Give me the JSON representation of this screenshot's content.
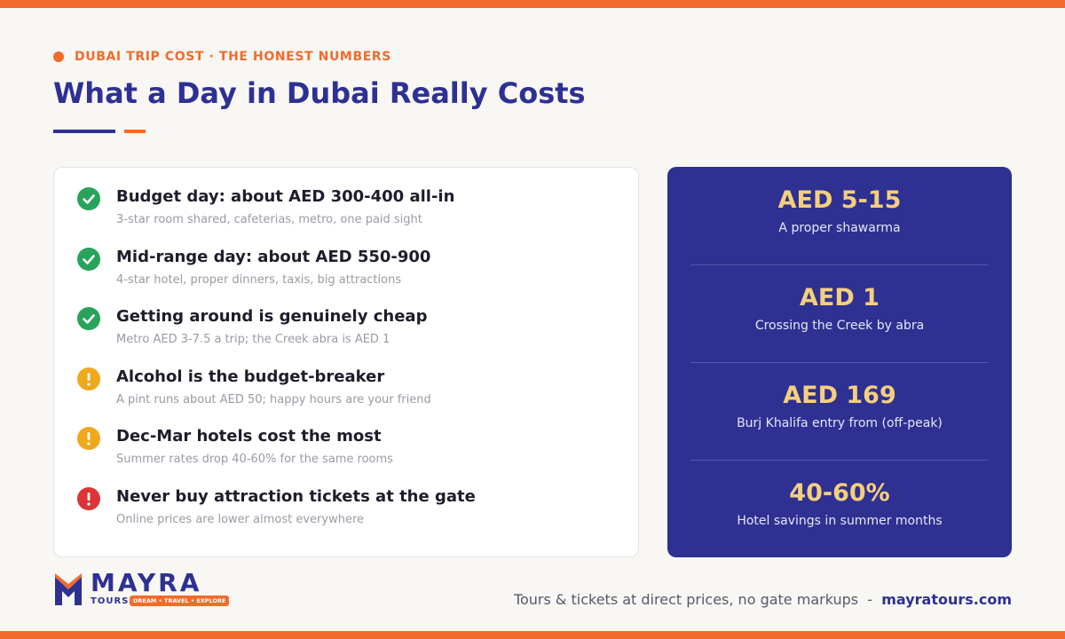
{
  "header": {
    "kicker": "DUBAI TRIP COST · THE HONEST NUMBERS",
    "title": "What a Day in Dubai Really Costs"
  },
  "tips": [
    {
      "status": "ok",
      "title": "Budget day: about AED 300-400 all-in",
      "detail": "3-star room shared, cafeterias, metro, one paid sight"
    },
    {
      "status": "ok",
      "title": "Mid-range day: about AED 550-900",
      "detail": "4-star hotel, proper dinners, taxis, big attractions"
    },
    {
      "status": "ok",
      "title": "Getting around is genuinely cheap",
      "detail": "Metro AED 3-7.5 a trip; the Creek abra is AED 1"
    },
    {
      "status": "warn",
      "title": "Alcohol is the budget-breaker",
      "detail": "A pint runs about AED 50; happy hours are your friend"
    },
    {
      "status": "warn",
      "title": "Dec-Mar hotels cost the most",
      "detail": "Summer rates drop 40-60% for the same rooms"
    },
    {
      "status": "alert",
      "title": "Never buy attraction tickets at the gate",
      "detail": "Online prices are lower almost everywhere"
    }
  ],
  "stats": [
    {
      "value": "AED 5-15",
      "label": "A proper shawarma"
    },
    {
      "value": "AED 1",
      "label": "Crossing the Creek by abra"
    },
    {
      "value": "AED 169",
      "label": "Burj Khalifa entry from (off-peak)"
    },
    {
      "value": "40-60%",
      "label": "Hotel savings in summer months"
    }
  ],
  "logo": {
    "name": "MAYRA",
    "sub": "TOURS",
    "tagline": "DREAM • TRAVEL • EXPLORE"
  },
  "footer": {
    "text": "Tours & tickets at direct prices, no gate markups",
    "separator": "-",
    "link": "mayratours.com"
  }
}
